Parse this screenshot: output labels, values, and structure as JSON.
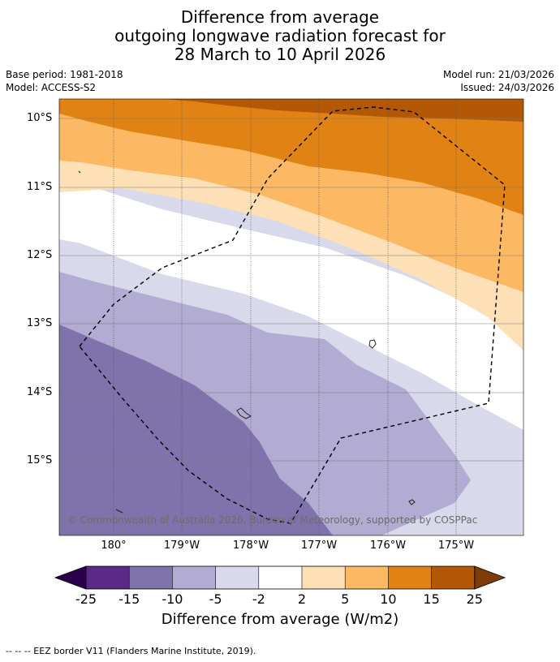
{
  "title": {
    "line1": "Difference from average",
    "line2": "outgoing longwave radiation forecast for",
    "line3": "28 March to 10 April 2026"
  },
  "meta": {
    "base_period": "Base period: 1981-2018",
    "model": "Model: ACCESS-S2",
    "model_run": "Model run: 21/03/2026",
    "issued": "Issued: 24/03/2026"
  },
  "map": {
    "lat_labels": [
      "10°S",
      "11°S",
      "12°S",
      "13°S",
      "14°S",
      "15°S"
    ],
    "lon_labels": [
      "180°",
      "179°W",
      "178°W",
      "177°W",
      "176°W",
      "175°W"
    ],
    "copyright": "© Commonwealth of Australia 2026, Bureau of Meteorology, supported by COSPPac",
    "colors": {
      "neg_20_25": "#5b2a86",
      "neg_15_10": "#8073ac",
      "neg_10_5": "#b2abd2",
      "neg_5_2": "#d8daeb",
      "neutral": "#ffffff",
      "pos_2_5": "#fee0b6",
      "pos_5_10": "#fdb863",
      "pos_10_15": "#e08214",
      "pos_15_25": "#b35806"
    }
  },
  "colorbar": {
    "ticks": [
      "-25",
      "-15",
      "-10",
      "-5",
      "-2",
      "2",
      "5",
      "10",
      "15",
      "25"
    ],
    "label": "Difference from average (W/m2)",
    "colors": [
      "#5b2a86",
      "#8073ac",
      "#b2abd2",
      "#d8daeb",
      "#ffffff",
      "#fee0b6",
      "#fdb863",
      "#e08214",
      "#b35806"
    ],
    "extend_low_color": "#2d004b",
    "extend_high_color": "#7f3b08"
  },
  "footnote": "--  --  -- EEZ border V11 (Flanders Marine Institute, 2019)."
}
